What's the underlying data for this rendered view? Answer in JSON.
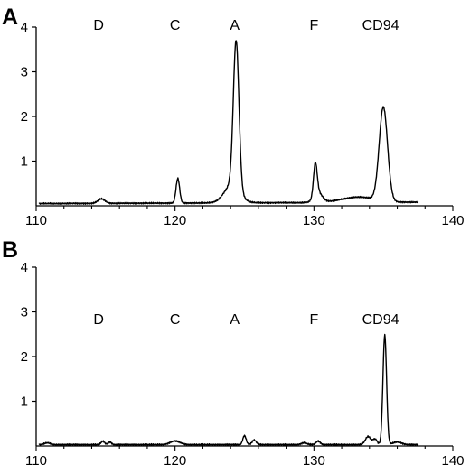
{
  "chart_data": [
    {
      "type": "line",
      "panel": "A",
      "xlim": [
        110,
        140
      ],
      "ylim": [
        0,
        4
      ],
      "x_ticks": [
        "110",
        "120",
        "130",
        "140"
      ],
      "y_ticks": [
        "1",
        "2",
        "3",
        "4"
      ],
      "grid": false,
      "peak_labels": [
        {
          "text": "D",
          "x": 114.5
        },
        {
          "text": "C",
          "x": 120.0
        },
        {
          "text": "A",
          "x": 124.3
        },
        {
          "text": "F",
          "x": 130.0
        },
        {
          "text": "CD94",
          "x": 134.8
        }
      ],
      "baseline": [
        [
          110.2,
          0.05
        ],
        [
          137.5,
          0.08
        ]
      ],
      "bumps": [
        {
          "x": 114.7,
          "h": 0.1,
          "w": 0.25
        },
        {
          "x": 120.2,
          "h": 0.55,
          "w": 0.13
        },
        {
          "x": 124.4,
          "h": 3.3,
          "w": 0.2
        },
        {
          "x": 124.1,
          "h": 0.4,
          "w": 0.55
        },
        {
          "x": 130.1,
          "h": 0.72,
          "w": 0.13
        },
        {
          "x": 130.3,
          "h": 0.22,
          "w": 0.3
        },
        {
          "x": 135.0,
          "h": 2.1,
          "w": 0.3
        },
        {
          "x": 133.2,
          "h": 0.12,
          "w": 1.2
        }
      ]
    },
    {
      "type": "line",
      "panel": "B",
      "xlim": [
        110,
        140
      ],
      "ylim": [
        0,
        4
      ],
      "x_ticks": [
        "110",
        "120",
        "130",
        "140"
      ],
      "y_ticks": [
        "1",
        "2",
        "3",
        "4"
      ],
      "grid": false,
      "peak_labels": [
        {
          "text": "D",
          "x": 114.5
        },
        {
          "text": "C",
          "x": 120.0
        },
        {
          "text": "A",
          "x": 124.3
        },
        {
          "text": "F",
          "x": 130.0
        },
        {
          "text": "CD94",
          "x": 134.8
        }
      ],
      "label_y": 2.85,
      "baseline": [
        [
          110.2,
          0.03
        ],
        [
          137.5,
          0.03
        ]
      ],
      "bumps": [
        {
          "x": 110.8,
          "h": 0.04,
          "w": 0.2
        },
        {
          "x": 114.8,
          "h": 0.08,
          "w": 0.12
        },
        {
          "x": 115.3,
          "h": 0.06,
          "w": 0.12
        },
        {
          "x": 120.0,
          "h": 0.08,
          "w": 0.35
        },
        {
          "x": 125.0,
          "h": 0.2,
          "w": 0.12
        },
        {
          "x": 125.7,
          "h": 0.1,
          "w": 0.15
        },
        {
          "x": 129.3,
          "h": 0.04,
          "w": 0.2
        },
        {
          "x": 130.3,
          "h": 0.08,
          "w": 0.15
        },
        {
          "x": 133.9,
          "h": 0.18,
          "w": 0.2
        },
        {
          "x": 134.4,
          "h": 0.12,
          "w": 0.15
        },
        {
          "x": 135.1,
          "h": 2.45,
          "w": 0.13
        },
        {
          "x": 136.0,
          "h": 0.06,
          "w": 0.3
        }
      ]
    }
  ]
}
